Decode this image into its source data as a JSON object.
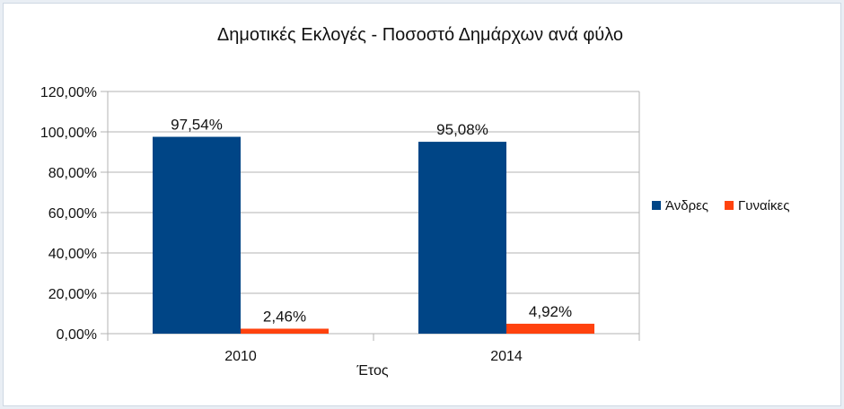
{
  "chart_data": {
    "type": "bar",
    "title": "Δημοτικές Εκλογές - Ποσοστό Δημάρχων ανά φύλο",
    "xlabel": "Έτος",
    "ylabel": "",
    "categories": [
      "2010",
      "2014"
    ],
    "series": [
      {
        "name": "Άνδρες",
        "values": [
          97.54,
          95.08
        ],
        "labels": [
          "97,54%",
          "95,08%"
        ],
        "color": "#004586"
      },
      {
        "name": "Γυναίκες",
        "values": [
          2.46,
          4.92
        ],
        "labels": [
          "2,46%",
          "4,92%"
        ],
        "color": "#ff420e"
      }
    ],
    "ylim": [
      0,
      120
    ],
    "yticks": [
      0,
      20,
      40,
      60,
      80,
      100,
      120
    ],
    "ytick_labels": [
      "0,00%",
      "20,00%",
      "40,00%",
      "60,00%",
      "80,00%",
      "100,00%",
      "120,00%"
    ],
    "grid": true,
    "legend_position": "right"
  }
}
